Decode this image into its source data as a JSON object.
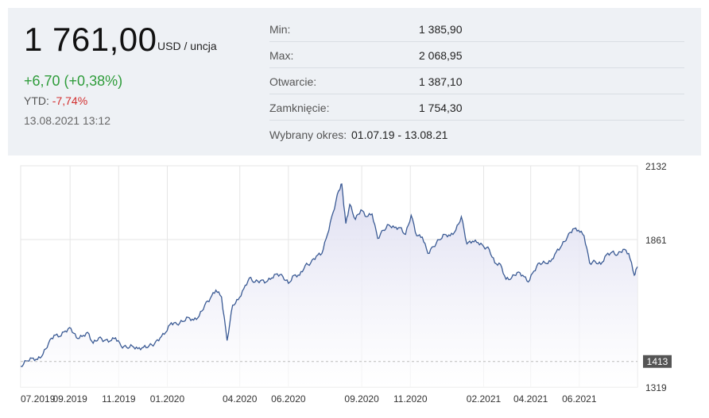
{
  "header": {
    "price": "1 761,00",
    "unit": "USD / uncja",
    "change": "+6,70 (+0,38%)",
    "ytd_label": "YTD:",
    "ytd_value": "-7,74%",
    "datetime": "13.08.2021 13:12"
  },
  "stats": [
    {
      "label": "Min:",
      "value": "1 385,90"
    },
    {
      "label": "Max:",
      "value": "2 068,95"
    },
    {
      "label": "Otwarcie:",
      "value": "1 387,10"
    },
    {
      "label": "Zamknięcie:",
      "value": "1 754,30"
    }
  ],
  "period": {
    "label": "Wybrany okres:",
    "value": "01.07.19 - 13.08.21"
  },
  "colors": {
    "line": "#3a5a94",
    "fill_top": "#dcdcf0",
    "positive": "#2e9c3a",
    "negative": "#d32f2f",
    "panel": "#eef1f5"
  },
  "chart_data": {
    "type": "area",
    "xlabel": "",
    "ylabel": "",
    "x_range": [
      "2019-07-01",
      "2021-08-13"
    ],
    "ylim": [
      1319,
      2132
    ],
    "y_ticks": [
      "2132",
      "1861",
      "1319"
    ],
    "x_tick_labels": [
      {
        "label": "07.2019",
        "date": "2019-07-01"
      },
      {
        "label": "09.2019",
        "date": "2019-09-01"
      },
      {
        "label": "11.2019",
        "date": "2019-11-01"
      },
      {
        "label": "01.2020",
        "date": "2020-01-01"
      },
      {
        "label": "04.2020",
        "date": "2020-04-01"
      },
      {
        "label": "06.2020",
        "date": "2020-06-01"
      },
      {
        "label": "09.2020",
        "date": "2020-09-01"
      },
      {
        "label": "11.2020",
        "date": "2020-11-01"
      },
      {
        "label": "02.2021",
        "date": "2021-02-01"
      },
      {
        "label": "04.2021",
        "date": "2021-04-01"
      },
      {
        "label": "06.2021",
        "date": "2021-06-01"
      }
    ],
    "reference_line": {
      "value": 1413,
      "label": "1413"
    },
    "grid": true,
    "series": [
      {
        "values": [
          [
            "2019-07-01",
            1395
          ],
          [
            "2019-07-08",
            1415
          ],
          [
            "2019-07-15",
            1425
          ],
          [
            "2019-07-22",
            1420
          ],
          [
            "2019-07-29",
            1440
          ],
          [
            "2019-08-05",
            1480
          ],
          [
            "2019-08-12",
            1510
          ],
          [
            "2019-08-19",
            1505
          ],
          [
            "2019-08-26",
            1525
          ],
          [
            "2019-09-02",
            1535
          ],
          [
            "2019-09-09",
            1500
          ],
          [
            "2019-09-16",
            1505
          ],
          [
            "2019-09-23",
            1520
          ],
          [
            "2019-09-30",
            1480
          ],
          [
            "2019-10-07",
            1500
          ],
          [
            "2019-10-14",
            1490
          ],
          [
            "2019-10-21",
            1488
          ],
          [
            "2019-10-28",
            1500
          ],
          [
            "2019-11-04",
            1470
          ],
          [
            "2019-11-11",
            1465
          ],
          [
            "2019-11-18",
            1470
          ],
          [
            "2019-11-25",
            1460
          ],
          [
            "2019-12-02",
            1465
          ],
          [
            "2019-12-09",
            1470
          ],
          [
            "2019-12-16",
            1478
          ],
          [
            "2019-12-23",
            1500
          ],
          [
            "2019-12-30",
            1520
          ],
          [
            "2020-01-06",
            1555
          ],
          [
            "2020-01-13",
            1550
          ],
          [
            "2020-01-20",
            1560
          ],
          [
            "2020-01-27",
            1575
          ],
          [
            "2020-02-03",
            1565
          ],
          [
            "2020-02-10",
            1580
          ],
          [
            "2020-02-17",
            1620
          ],
          [
            "2020-02-24",
            1645
          ],
          [
            "2020-03-02",
            1675
          ],
          [
            "2020-03-09",
            1650
          ],
          [
            "2020-03-16",
            1490
          ],
          [
            "2020-03-23",
            1620
          ],
          [
            "2020-03-30",
            1640
          ],
          [
            "2020-04-06",
            1680
          ],
          [
            "2020-04-13",
            1720
          ],
          [
            "2020-04-20",
            1705
          ],
          [
            "2020-04-27",
            1710
          ],
          [
            "2020-05-04",
            1705
          ],
          [
            "2020-05-11",
            1720
          ],
          [
            "2020-05-18",
            1735
          ],
          [
            "2020-05-25",
            1725
          ],
          [
            "2020-06-01",
            1700
          ],
          [
            "2020-06-08",
            1730
          ],
          [
            "2020-06-15",
            1730
          ],
          [
            "2020-06-22",
            1765
          ],
          [
            "2020-06-29",
            1775
          ],
          [
            "2020-07-06",
            1800
          ],
          [
            "2020-07-13",
            1810
          ],
          [
            "2020-07-20",
            1880
          ],
          [
            "2020-07-27",
            1960
          ],
          [
            "2020-08-03",
            2040
          ],
          [
            "2020-08-07",
            2065
          ],
          [
            "2020-08-12",
            1920
          ],
          [
            "2020-08-17",
            1990
          ],
          [
            "2020-08-24",
            1935
          ],
          [
            "2020-08-31",
            1970
          ],
          [
            "2020-09-07",
            1945
          ],
          [
            "2020-09-14",
            1955
          ],
          [
            "2020-09-21",
            1865
          ],
          [
            "2020-09-28",
            1895
          ],
          [
            "2020-10-05",
            1915
          ],
          [
            "2020-10-12",
            1905
          ],
          [
            "2020-10-19",
            1905
          ],
          [
            "2020-10-26",
            1880
          ],
          [
            "2020-11-02",
            1950
          ],
          [
            "2020-11-09",
            1875
          ],
          [
            "2020-11-16",
            1870
          ],
          [
            "2020-11-23",
            1810
          ],
          [
            "2020-11-30",
            1835
          ],
          [
            "2020-12-07",
            1860
          ],
          [
            "2020-12-14",
            1880
          ],
          [
            "2020-12-21",
            1875
          ],
          [
            "2020-12-28",
            1895
          ],
          [
            "2021-01-04",
            1945
          ],
          [
            "2021-01-11",
            1845
          ],
          [
            "2021-01-18",
            1855
          ],
          [
            "2021-01-25",
            1850
          ],
          [
            "2021-02-01",
            1835
          ],
          [
            "2021-02-08",
            1825
          ],
          [
            "2021-02-15",
            1775
          ],
          [
            "2021-02-22",
            1770
          ],
          [
            "2021-03-01",
            1715
          ],
          [
            "2021-03-08",
            1720
          ],
          [
            "2021-03-15",
            1740
          ],
          [
            "2021-03-22",
            1730
          ],
          [
            "2021-03-29",
            1705
          ],
          [
            "2021-04-05",
            1745
          ],
          [
            "2021-04-12",
            1775
          ],
          [
            "2021-04-19",
            1775
          ],
          [
            "2021-04-26",
            1780
          ],
          [
            "2021-05-03",
            1815
          ],
          [
            "2021-05-10",
            1840
          ],
          [
            "2021-05-17",
            1870
          ],
          [
            "2021-05-24",
            1900
          ],
          [
            "2021-05-31",
            1895
          ],
          [
            "2021-06-07",
            1875
          ],
          [
            "2021-06-14",
            1775
          ],
          [
            "2021-06-21",
            1780
          ],
          [
            "2021-06-28",
            1770
          ],
          [
            "2021-07-05",
            1805
          ],
          [
            "2021-07-12",
            1815
          ],
          [
            "2021-07-19",
            1805
          ],
          [
            "2021-07-26",
            1825
          ],
          [
            "2021-08-02",
            1810
          ],
          [
            "2021-08-09",
            1730
          ],
          [
            "2021-08-13",
            1761
          ]
        ]
      }
    ]
  }
}
